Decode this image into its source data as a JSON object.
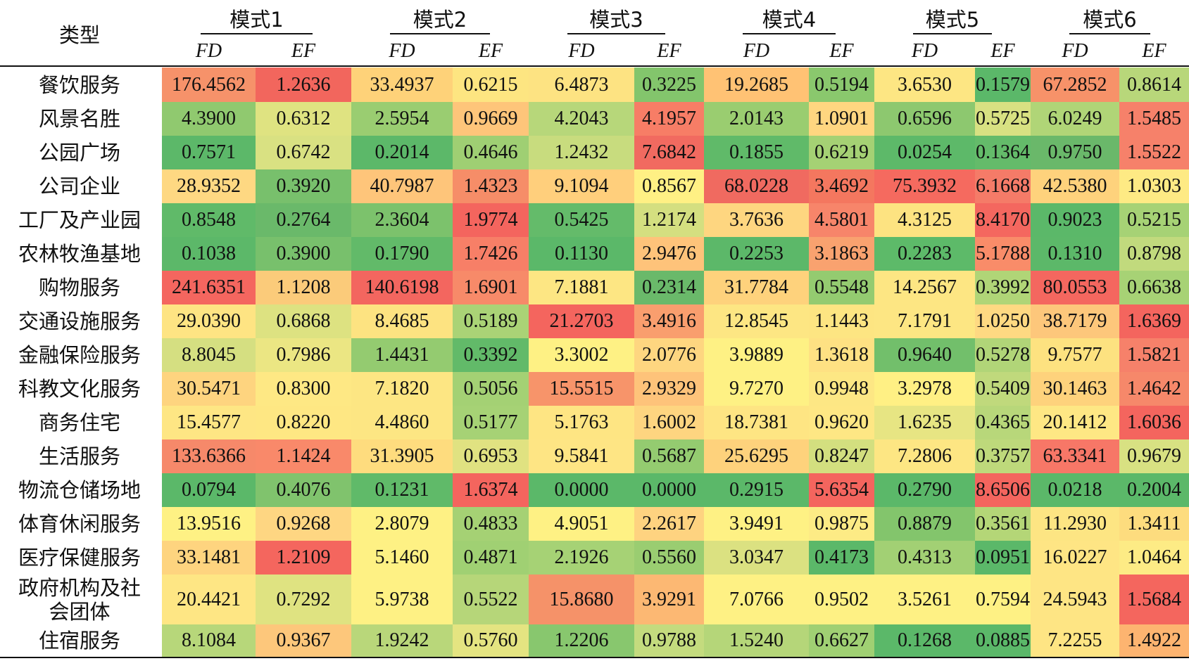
{
  "header": {
    "type_label": "类型",
    "modes": [
      "模式1",
      "模式2",
      "模式3",
      "模式4",
      "模式5",
      "模式6"
    ],
    "sub": [
      "FD",
      "EF"
    ]
  },
  "rows": [
    {
      "label": "餐饮服务",
      "values": [
        "176.4562",
        "1.2636",
        "33.4937",
        "0.6215",
        "6.4873",
        "0.3225",
        "19.2685",
        "0.5194",
        "3.6530",
        "0.1579",
        "67.2852",
        "0.8614"
      ],
      "colors": [
        "#f6926a",
        "#f2665d",
        "#fed279",
        "#fde581",
        "#fde382",
        "#83c56c",
        "#ffc274",
        "#8ac86d",
        "#fde683",
        "#5bb869",
        "#f79269",
        "#b8d77a"
      ]
    },
    {
      "label": "风景名胜",
      "values": [
        "4.3900",
        "0.6312",
        "2.5954",
        "0.9669",
        "4.2043",
        "4.1957",
        "2.0143",
        "1.0901",
        "0.6596",
        "0.5725",
        "6.0249",
        "1.5485"
      ],
      "colors": [
        "#90c96f",
        "#dfe381",
        "#9acd71",
        "#fec57a",
        "#b7d77a",
        "#f77d66",
        "#9acd70",
        "#ffd680",
        "#8dc86f",
        "#d8e182",
        "#b0d577",
        "#f6816a"
      ]
    },
    {
      "label": "公园广场",
      "values": [
        "0.7571",
        "0.6742",
        "0.2014",
        "0.4646",
        "1.2432",
        "7.6842",
        "0.1855",
        "0.6219",
        "0.0254",
        "0.1364",
        "0.9750",
        "1.5522"
      ],
      "colors": [
        "#5cb869",
        "#d9e182",
        "#5cb869",
        "#9fcf73",
        "#c8dc7e",
        "#f16a60",
        "#60ba69",
        "#a5d174",
        "#5db969",
        "#64bb6a",
        "#6ab86a",
        "#f6816a"
      ]
    },
    {
      "label": "公司企业",
      "values": [
        "28.9352",
        "0.3920",
        "40.7987",
        "1.4323",
        "9.1094",
        "0.8567",
        "68.0228",
        "3.4692",
        "75.3932",
        "6.1668",
        "42.5380",
        "1.0303"
      ],
      "colors": [
        "#fed882",
        "#78c06c",
        "#fec57a",
        "#f68d68",
        "#ffcf7c",
        "#fff084",
        "#f06a60",
        "#f4775f",
        "#f56a5f",
        "#f57b68",
        "#fed27c",
        "#feea84"
      ]
    },
    {
      "label": "工厂及产业园",
      "values": [
        "0.8548",
        "0.2764",
        "2.3604",
        "1.9774",
        "0.5425",
        "1.2174",
        "3.7636",
        "4.5801",
        "4.3125",
        "8.4170",
        "0.9023",
        "0.5215"
      ],
      "colors": [
        "#60ba69",
        "#6ab96a",
        "#7cc26c",
        "#f4655e",
        "#64bb6a",
        "#d4df80",
        "#fed680",
        "#f7856a",
        "#fde381",
        "#f4675f",
        "#5bb869",
        "#a6d275"
      ]
    },
    {
      "label": "农林牧渔基地",
      "values": [
        "0.1038",
        "0.3900",
        "0.1790",
        "1.7426",
        "0.1130",
        "2.9476",
        "0.2253",
        "3.1863",
        "0.2283",
        "5.1788",
        "0.1310",
        "0.8798"
      ],
      "colors": [
        "#5cb869",
        "#78c06c",
        "#62ba69",
        "#f77f67",
        "#5bb869",
        "#fec37a",
        "#5cb869",
        "#f9a26f",
        "#5dba69",
        "#f98c69",
        "#5cb869",
        "#c1da7d"
      ]
    },
    {
      "label": "购物服务",
      "values": [
        "241.6351",
        "1.1208",
        "140.6198",
        "1.6901",
        "7.1881",
        "0.2314",
        "31.7784",
        "0.5548",
        "14.2567",
        "0.3992",
        "80.0553",
        "0.6638"
      ],
      "colors": [
        "#f4665f",
        "#fbcb7a",
        "#f3665f",
        "#f78a69",
        "#fde683",
        "#6ab96a",
        "#fed27c",
        "#94cb70",
        "#fde683",
        "#b0d577",
        "#f4675f",
        "#a7d275"
      ]
    },
    {
      "label": "交通设施服务",
      "values": [
        "29.0390",
        "0.6868",
        "8.4685",
        "0.5189",
        "21.2703",
        "3.4916",
        "12.8545",
        "1.1443",
        "7.1791",
        "1.0250",
        "38.7179",
        "1.6369"
      ],
      "colors": [
        "#fee483",
        "#dde281",
        "#fde381",
        "#aad376",
        "#f4655e",
        "#f99e6e",
        "#fde683",
        "#fde582",
        "#fde683",
        "#fed982",
        "#fdc77b",
        "#f4655e"
      ]
    },
    {
      "label": "金融保险服务",
      "values": [
        "8.8045",
        "0.7986",
        "1.4431",
        "0.3392",
        "3.3002",
        "2.0776",
        "3.9889",
        "1.3618",
        "0.9640",
        "0.5278",
        "9.7577",
        "1.5821"
      ],
      "colors": [
        "#d5df81",
        "#ebe683",
        "#94cb70",
        "#62ba69",
        "#fef184",
        "#fed680",
        "#fef184",
        "#fee183",
        "#72bf6b",
        "#b1d578",
        "#fde280",
        "#f6816a"
      ]
    },
    {
      "label": "科教文化服务",
      "values": [
        "30.5471",
        "0.8300",
        "7.1820",
        "0.5056",
        "15.5515",
        "2.9329",
        "9.7270",
        "0.9948",
        "3.2978",
        "0.5409",
        "30.1463",
        "1.4642"
      ],
      "colors": [
        "#fed47f",
        "#fee884",
        "#fde683",
        "#a4d174",
        "#f7946a",
        "#fec37a",
        "#fef184",
        "#fde784",
        "#fff084",
        "#c0d97c",
        "#fed27c",
        "#f6886a"
      ]
    },
    {
      "label": "商务住宅",
      "values": [
        "15.4577",
        "0.8220",
        "4.4860",
        "0.5177",
        "5.1763",
        "1.6002",
        "18.7381",
        "0.9620",
        "1.6235",
        "0.4365",
        "20.1412",
        "1.6036"
      ],
      "colors": [
        "#fee684",
        "#fee783",
        "#fde683",
        "#a6d275",
        "#fee583",
        "#fed580",
        "#fee583",
        "#fee784",
        "#e7e583",
        "#b8d77a",
        "#fee784",
        "#f4655e"
      ]
    },
    {
      "label": "生活服务",
      "values": [
        "133.6366",
        "1.1424",
        "31.3905",
        "0.6953",
        "9.5841",
        "0.5687",
        "25.6295",
        "0.8247",
        "7.2806",
        "0.3757",
        "63.3341",
        "0.9679"
      ],
      "colors": [
        "#f6896a",
        "#f9896a",
        "#fedc7e",
        "#e0e281",
        "#fee584",
        "#94cb70",
        "#fed27c",
        "#d3df7f",
        "#fde683",
        "#bed97b",
        "#f77767",
        "#d8e182"
      ]
    },
    {
      "label": "物流仓储场地",
      "values": [
        "0.0794",
        "0.4076",
        "0.1231",
        "1.6374",
        "0.0000",
        "0.0000",
        "0.2915",
        "5.6354",
        "0.2790",
        "8.6506",
        "0.0218",
        "0.2004"
      ],
      "colors": [
        "#5bb869",
        "#80c36d",
        "#60ba69",
        "#f4655e",
        "#5bb869",
        "#5bb869",
        "#5bb869",
        "#f4655e",
        "#5bb869",
        "#f4655e",
        "#5bb869",
        "#5bb869"
      ]
    },
    {
      "label": "体育休闲服务",
      "values": [
        "13.9516",
        "0.9268",
        "2.8079",
        "0.4833",
        "4.9051",
        "2.2617",
        "3.9491",
        "0.9875",
        "0.8879",
        "0.3561",
        "11.2930",
        "1.3411"
      ],
      "colors": [
        "#fef184",
        "#fed682",
        "#fef184",
        "#a5d174",
        "#fef184",
        "#fed380",
        "#fef184",
        "#fdeb85",
        "#83c56c",
        "#b4d677",
        "#fde583",
        "#fddc7e"
      ]
    },
    {
      "label": "医疗保健服务",
      "values": [
        "33.1481",
        "1.2109",
        "5.1460",
        "0.4871",
        "2.1926",
        "0.5560",
        "3.0347",
        "0.4173",
        "0.4313",
        "0.0951",
        "16.0227",
        "1.0464"
      ],
      "colors": [
        "#fed47f",
        "#f4665e",
        "#fef184",
        "#a0d073",
        "#a6d275",
        "#9acd71",
        "#dbe181",
        "#5bb869",
        "#a2d074",
        "#5bb869",
        "#fee584",
        "#fdeb85"
      ]
    },
    {
      "label": "政府机构及社会团体",
      "values": [
        "20.4421",
        "0.7292",
        "5.9738",
        "0.5522",
        "15.8680",
        "3.9291",
        "7.0766",
        "0.9502",
        "3.5261",
        "0.7594",
        "24.5943",
        "1.5684"
      ],
      "colors": [
        "#fee684",
        "#dfe381",
        "#fef184",
        "#b6d679",
        "#f59269",
        "#fcb873",
        "#fef184",
        "#fef184",
        "#fef184",
        "#fef184",
        "#fee584",
        "#f4665e"
      ]
    },
    {
      "label": "住宿服务",
      "values": [
        "8.1084",
        "0.9367",
        "1.9242",
        "0.5760",
        "1.2206",
        "0.9788",
        "1.5240",
        "0.6627",
        "0.1268",
        "0.0885",
        "7.2255",
        "1.4922"
      ],
      "colors": [
        "#b7d77a",
        "#fdc77b",
        "#b9d77a",
        "#e4e481",
        "#88c76e",
        "#c4db7e",
        "#b5d679",
        "#a0d073",
        "#5bb869",
        "#5bb869",
        "#fee584",
        "#fdb470"
      ]
    }
  ]
}
